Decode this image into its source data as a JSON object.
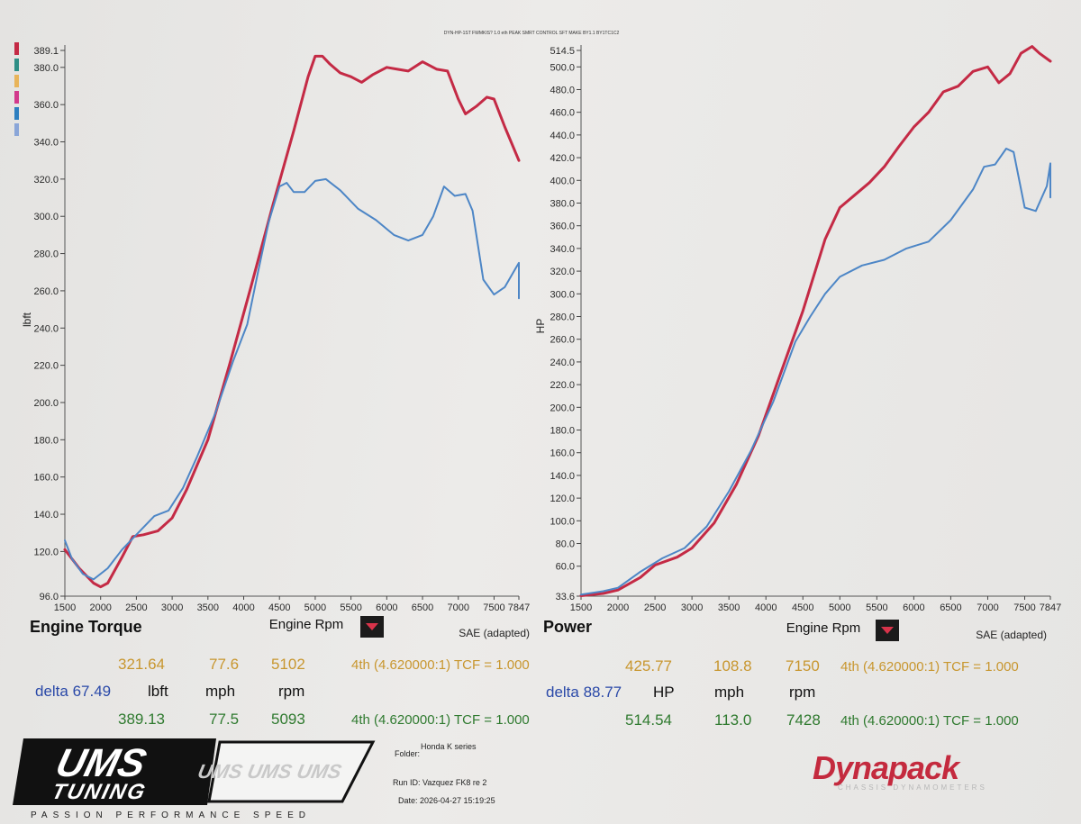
{
  "header_text": "DYN-HP-1ST FWMKIS? 1.0 eth PEAK SMRT CONTROL SFT MAKE BY1.1 BY1TC1C2",
  "colors": {
    "red_run": "#c42a45",
    "blue_run": "#4d86c6",
    "legend_swatches": [
      "#c42a45",
      "#2e8f86",
      "#e8b45a",
      "#d23a8c",
      "#2d7fc0",
      "#8aa6d8"
    ]
  },
  "chart_data": [
    {
      "type": "line",
      "title": "Engine Torque",
      "xlabel": "Engine Rpm",
      "ylabel": "lbft",
      "correction": "SAE (adapted)",
      "xlim": [
        1500,
        7847
      ],
      "ylim": [
        96.0,
        389.1
      ],
      "x_ticks": [
        "1500",
        "2000",
        "2500",
        "3000",
        "3500",
        "4000",
        "4500",
        "5000",
        "5500",
        "6000",
        "6500",
        "7000",
        "7500",
        "7847"
      ],
      "x_tick_values": [
        1500,
        2000,
        2500,
        3000,
        3500,
        4000,
        4500,
        5000,
        5500,
        6000,
        6500,
        7000,
        7500,
        7847
      ],
      "y_ticks": [
        "96.0",
        "120.0",
        "140.0",
        "160.0",
        "180.0",
        "200.0",
        "220.0",
        "240.0",
        "260.0",
        "280.0",
        "300.0",
        "320.0",
        "340.0",
        "360.0",
        "380.0",
        "389.1"
      ],
      "y_tick_values": [
        96,
        120,
        140,
        160,
        180,
        200,
        220,
        240,
        260,
        280,
        300,
        320,
        340,
        360,
        380,
        389.1
      ],
      "series": [
        {
          "color": "#c42a45",
          "points": [
            [
              1500,
              121
            ],
            [
              1700,
              111
            ],
            [
              1900,
              103
            ],
            [
              2000,
              101
            ],
            [
              2100,
              103
            ],
            [
              2300,
              117
            ],
            [
              2450,
              128
            ],
            [
              2600,
              129
            ],
            [
              2800,
              131
            ],
            [
              3000,
              138
            ],
            [
              3200,
              153
            ],
            [
              3500,
              180
            ],
            [
              3800,
              220
            ],
            [
              4100,
              262
            ],
            [
              4400,
              305
            ],
            [
              4700,
              346
            ],
            [
              4900,
              375
            ],
            [
              5000,
              386
            ],
            [
              5100,
              386
            ],
            [
              5200,
              382
            ],
            [
              5350,
              377
            ],
            [
              5500,
              375
            ],
            [
              5650,
              372
            ],
            [
              5800,
              376
            ],
            [
              6000,
              380
            ],
            [
              6150,
              379
            ],
            [
              6300,
              378
            ],
            [
              6500,
              383
            ],
            [
              6700,
              379
            ],
            [
              6850,
              378
            ],
            [
              7000,
              363
            ],
            [
              7100,
              355
            ],
            [
              7250,
              359
            ],
            [
              7400,
              364
            ],
            [
              7500,
              363
            ],
            [
              7650,
              348
            ],
            [
              7847,
              330
            ]
          ]
        },
        {
          "color": "#4d86c6",
          "points": [
            [
              1500,
              126
            ],
            [
              1600,
              116
            ],
            [
              1750,
              108
            ],
            [
              1900,
              105
            ],
            [
              2100,
              111
            ],
            [
              2300,
              121
            ],
            [
              2550,
              131
            ],
            [
              2750,
              139
            ],
            [
              2950,
              142
            ],
            [
              3150,
              154
            ],
            [
              3350,
              171
            ],
            [
              3600,
              194
            ],
            [
              3850,
              222
            ],
            [
              4050,
              242
            ],
            [
              4200,
              270
            ],
            [
              4350,
              297
            ],
            [
              4500,
              316
            ],
            [
              4600,
              318
            ],
            [
              4700,
              313
            ],
            [
              4850,
              313
            ],
            [
              5000,
              319
            ],
            [
              5150,
              320
            ],
            [
              5350,
              314
            ],
            [
              5600,
              304
            ],
            [
              5850,
              298
            ],
            [
              6100,
              290
            ],
            [
              6300,
              287
            ],
            [
              6500,
              290
            ],
            [
              6650,
              300
            ],
            [
              6800,
              316
            ],
            [
              6950,
              311
            ],
            [
              7100,
              312
            ],
            [
              7200,
              303
            ],
            [
              7350,
              266
            ],
            [
              7500,
              258
            ],
            [
              7650,
              262
            ],
            [
              7800,
              272
            ],
            [
              7847,
              275
            ],
            [
              7847,
              256
            ]
          ]
        }
      ],
      "readout": {
        "run1": {
          "value": "321.64",
          "speed": "77.6",
          "rpm": "5102",
          "gear": "4th (4.620000:1) TCF = 1.000"
        },
        "units": {
          "delta": "delta 67.49",
          "value": "lbft",
          "speed": "mph",
          "rpm": "rpm"
        },
        "run2": {
          "value": "389.13",
          "speed": "77.5",
          "rpm": "5093",
          "gear": "4th (4.620000:1) TCF = 1.000"
        }
      }
    },
    {
      "type": "line",
      "title": "Power",
      "xlabel": "Engine Rpm",
      "ylabel": "HP",
      "correction": "SAE (adapted)",
      "xlim": [
        1500,
        7847
      ],
      "ylim": [
        33.6,
        514.5
      ],
      "x_ticks": [
        "1500",
        "2000",
        "2500",
        "3000",
        "3500",
        "4000",
        "4500",
        "5000",
        "5500",
        "6000",
        "6500",
        "7000",
        "7500",
        "7847"
      ],
      "x_tick_values": [
        1500,
        2000,
        2500,
        3000,
        3500,
        4000,
        4500,
        5000,
        5500,
        6000,
        6500,
        7000,
        7500,
        7847
      ],
      "y_ticks": [
        "33.6",
        "60.0",
        "80.0",
        "100.0",
        "120.0",
        "140.0",
        "160.0",
        "180.0",
        "200.0",
        "220.0",
        "240.0",
        "260.0",
        "280.0",
        "300.0",
        "320.0",
        "340.0",
        "360.0",
        "380.0",
        "400.0",
        "420.0",
        "440.0",
        "460.0",
        "480.0",
        "500.0",
        "514.5"
      ],
      "y_tick_values": [
        33.6,
        60,
        80,
        100,
        120,
        140,
        160,
        180,
        200,
        220,
        240,
        260,
        280,
        300,
        320,
        340,
        360,
        380,
        400,
        420,
        440,
        460,
        480,
        500,
        514.5
      ],
      "series": [
        {
          "color": "#c42a45",
          "points": [
            [
              1500,
              34
            ],
            [
              1800,
              36
            ],
            [
              2000,
              39
            ],
            [
              2300,
              50
            ],
            [
              2500,
              61
            ],
            [
              2800,
              68
            ],
            [
              3000,
              76
            ],
            [
              3300,
              98
            ],
            [
              3600,
              132
            ],
            [
              3900,
              175
            ],
            [
              4200,
              230
            ],
            [
              4500,
              285
            ],
            [
              4800,
              348
            ],
            [
              5000,
              376
            ],
            [
              5200,
              387
            ],
            [
              5400,
              398
            ],
            [
              5600,
              412
            ],
            [
              5800,
              430
            ],
            [
              6000,
              447
            ],
            [
              6200,
              460
            ],
            [
              6400,
              478
            ],
            [
              6600,
              483
            ],
            [
              6800,
              496
            ],
            [
              7000,
              500
            ],
            [
              7150,
              486
            ],
            [
              7300,
              494
            ],
            [
              7450,
              512
            ],
            [
              7600,
              518
            ],
            [
              7700,
              512
            ],
            [
              7847,
              505
            ]
          ]
        },
        {
          "color": "#4d86c6",
          "points": [
            [
              1500,
              35
            ],
            [
              1800,
              38
            ],
            [
              2000,
              41
            ],
            [
              2300,
              55
            ],
            [
              2600,
              67
            ],
            [
              2900,
              76
            ],
            [
              3200,
              95
            ],
            [
              3500,
              126
            ],
            [
              3800,
              162
            ],
            [
              4100,
              205
            ],
            [
              4400,
              258
            ],
            [
              4600,
              280
            ],
            [
              4800,
              300
            ],
            [
              5000,
              315
            ],
            [
              5300,
              325
            ],
            [
              5600,
              330
            ],
            [
              5900,
              340
            ],
            [
              6200,
              346
            ],
            [
              6500,
              365
            ],
            [
              6800,
              392
            ],
            [
              6950,
              412
            ],
            [
              7100,
              414
            ],
            [
              7250,
              428
            ],
            [
              7350,
              425
            ],
            [
              7500,
              376
            ],
            [
              7650,
              373
            ],
            [
              7800,
              395
            ],
            [
              7847,
              415
            ],
            [
              7847,
              385
            ]
          ]
        }
      ],
      "readout": {
        "run1": {
          "value": "425.77",
          "speed": "108.8",
          "rpm": "7150",
          "gear": "4th (4.620000:1) TCF = 1.000"
        },
        "units": {
          "delta": "delta 88.77",
          "value": "HP",
          "speed": "mph",
          "rpm": "rpm"
        },
        "run2": {
          "value": "514.54",
          "speed": "113.0",
          "rpm": "7428",
          "gear": "4th (4.620000:1) TCF = 1.000"
        }
      }
    }
  ],
  "footer": {
    "logo_main": "UMS",
    "logo_sub": "TUNING",
    "logo_pattern": "UMS UMS UMS",
    "tagline": "PASSION PERFORMANCE SPEED",
    "folder_label": "Folder:",
    "folder_value": "Honda K series",
    "run_id": "Run ID: Vazquez FK8 re 2",
    "date": "Date: 2026-04-27 15:19:25",
    "brand": "Dynapack",
    "brand_sub": "CHASSIS DYNAMOMETERS"
  }
}
